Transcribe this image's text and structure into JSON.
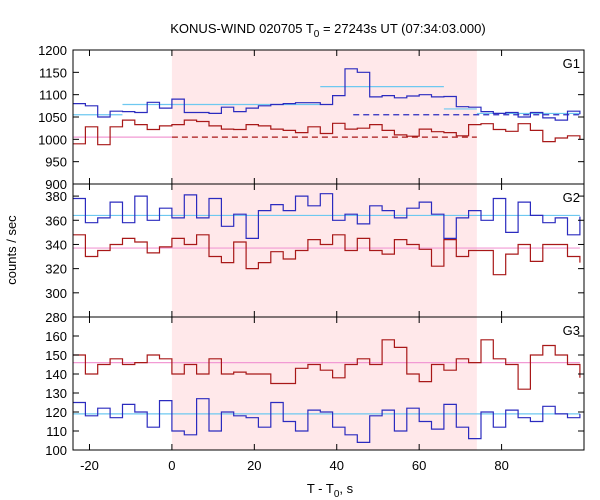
{
  "chart_data": {
    "type": "line",
    "title": "KONUS-WIND 020705 T",
    "title_sub": "0",
    "title_rest": " = 27243s UT (07:34:03.000)",
    "xlabel_main": "T - T",
    "xlabel_sub": "0",
    "xlabel_rest": ", s",
    "ylabel": "counts / sec",
    "xlim": [
      -24,
      100
    ],
    "xticks": [
      -20,
      0,
      20,
      40,
      60,
      80
    ],
    "highlight_interval": [
      0,
      74
    ],
    "colors": {
      "blue": "#2b2bbf",
      "red": "#a81818",
      "light_blue": "#6ec8f0",
      "pink": "#f29ad4",
      "shade": "#ffe8ea"
    },
    "panels": [
      {
        "name": "G1",
        "ylim": [
          900,
          1200
        ],
        "yticks": [
          900,
          950,
          1000,
          1050,
          1100,
          1150,
          1200
        ],
        "series": [
          {
            "color": "blue",
            "x_edges": [
              -24,
              -21,
              -18,
              -15,
              -12,
              -9,
              -6,
              -3,
              0,
              3,
              6,
              9,
              12,
              15,
              18,
              21,
              24,
              27,
              30,
              33,
              36,
              39,
              42,
              45,
              48,
              51,
              54,
              57,
              60,
              63,
              66,
              69,
              72,
              75,
              78,
              81,
              84,
              87,
              90,
              93,
              96,
              99
            ],
            "values": [
              1080,
              1075,
              1050,
              1063,
              1062,
              1060,
              1083,
              1070,
              1090,
              1060,
              1060,
              1058,
              1072,
              1062,
              1070,
              1075,
              1078,
              1080,
              1082,
              1082,
              1078,
              1098,
              1158,
              1150,
              1095,
              1098,
              1093,
              1097,
              1100,
              1095,
              1096,
              1073,
              1072,
              1062,
              1058,
              1060,
              1050,
              1060,
              1048,
              1043,
              1063,
              1056
            ]
          },
          {
            "color": "red",
            "x_edges": [
              -24,
              -21,
              -18,
              -15,
              -12,
              -9,
              -6,
              -3,
              0,
              3,
              6,
              9,
              12,
              15,
              18,
              21,
              24,
              27,
              30,
              33,
              36,
              39,
              42,
              45,
              48,
              51,
              54,
              57,
              60,
              63,
              66,
              69,
              72,
              75,
              78,
              81,
              84,
              87,
              90,
              93,
              96,
              99
            ],
            "values": [
              990,
              1028,
              988,
              1028,
              1043,
              1033,
              1022,
              1030,
              1033,
              1043,
              1040,
              1030,
              1023,
              1022,
              1033,
              1030,
              1023,
              1020,
              1015,
              1028,
              1013,
              1036,
              1023,
              1025,
              1033,
              1020,
              1010,
              1007,
              1023,
              1017,
              1015,
              1008,
              1033,
              1035,
              1022,
              1018,
              1035,
              1020,
              995,
              1003,
              1008,
              1000
            ]
          }
        ],
        "fits": [
          {
            "color": "light_blue",
            "style": "solid",
            "segments": [
              [
                -24,
                -12,
                1055
              ],
              [
                -12,
                36,
                1078
              ],
              [
                36,
                66,
                1118
              ],
              [
                66,
                74,
                1068
              ],
              [
                74,
                99,
                1058
              ]
            ]
          },
          {
            "color": "blue",
            "style": "dashed",
            "segments": [
              [
                44,
                99,
                1055
              ]
            ]
          },
          {
            "color": "red",
            "style": "dashed",
            "segments": [
              [
                0,
                74,
                1005
              ]
            ]
          },
          {
            "color": "pink",
            "style": "solid",
            "segments": [
              [
                -24,
                0,
                1005
              ]
            ]
          }
        ]
      },
      {
        "name": "G2",
        "ylim": [
          280,
          390
        ],
        "yticks": [
          280,
          300,
          320,
          340,
          360,
          380
        ],
        "series": [
          {
            "color": "blue",
            "x_edges": [
              -24,
              -21,
              -18,
              -15,
              -12,
              -9,
              -6,
              -3,
              0,
              3,
              6,
              9,
              12,
              15,
              18,
              21,
              24,
              27,
              30,
              33,
              36,
              39,
              42,
              45,
              48,
              51,
              54,
              57,
              60,
              63,
              66,
              69,
              72,
              75,
              78,
              81,
              84,
              87,
              90,
              93,
              96,
              99
            ],
            "values": [
              378,
              358,
              362,
              375,
              358,
              380,
              360,
              370,
              362,
              381,
              362,
              378,
              355,
              365,
              345,
              368,
              373,
              368,
              380,
              372,
              382,
              360,
              365,
              357,
              372,
              368,
              362,
              370,
              375,
              365,
              345,
              362,
              368,
              360,
              378,
              350,
              375,
              364,
              358,
              362,
              348,
              363
            ]
          },
          {
            "color": "red",
            "x_edges": [
              -24,
              -21,
              -18,
              -15,
              -12,
              -9,
              -6,
              -3,
              0,
              3,
              6,
              9,
              12,
              15,
              18,
              21,
              24,
              27,
              30,
              33,
              36,
              39,
              42,
              45,
              48,
              51,
              54,
              57,
              60,
              63,
              66,
              69,
              72,
              75,
              78,
              81,
              84,
              87,
              90,
              93,
              96,
              99
            ],
            "values": [
              348,
              330,
              335,
              340,
              345,
              342,
              333,
              338,
              345,
              340,
              348,
              330,
              325,
              342,
              320,
              325,
              334,
              328,
              335,
              344,
              340,
              348,
              335,
              345,
              335,
              332,
              344,
              340,
              336,
              322,
              344,
              330,
              335,
              335,
              315,
              332,
              340,
              326,
              340,
              340,
              330,
              325
            ]
          }
        ],
        "fits": [
          {
            "color": "light_blue",
            "style": "solid",
            "segments": [
              [
                -24,
                99,
                364
              ]
            ]
          },
          {
            "color": "pink",
            "style": "solid",
            "segments": [
              [
                -24,
                99,
                337
              ]
            ]
          }
        ]
      },
      {
        "name": "G3",
        "ylim": [
          100,
          170
        ],
        "yticks": [
          100,
          110,
          120,
          130,
          140,
          150,
          160
        ],
        "series": [
          {
            "color": "blue",
            "x_edges": [
              -24,
              -21,
              -18,
              -15,
              -12,
              -9,
              -6,
              -3,
              0,
              3,
              6,
              9,
              12,
              15,
              18,
              21,
              24,
              27,
              30,
              33,
              36,
              39,
              42,
              45,
              48,
              51,
              54,
              57,
              60,
              63,
              66,
              69,
              72,
              75,
              78,
              81,
              84,
              87,
              90,
              93,
              96,
              99
            ],
            "values": [
              125,
              118,
              122,
              117,
              124,
              120,
              112,
              126,
              110,
              108,
              127,
              110,
              120,
              118,
              117,
              112,
              125,
              115,
              110,
              121,
              120,
              112,
              108,
              104,
              118,
              121,
              110,
              122,
              115,
              111,
              124,
              112,
              106,
              120,
              112,
              121,
              117,
              115,
              123,
              119,
              117,
              119
            ]
          },
          {
            "color": "red",
            "x_edges": [
              -24,
              -21,
              -18,
              -15,
              -12,
              -9,
              -6,
              -3,
              0,
              3,
              6,
              9,
              12,
              15,
              18,
              21,
              24,
              27,
              30,
              33,
              36,
              39,
              42,
              45,
              48,
              51,
              54,
              57,
              60,
              63,
              66,
              69,
              72,
              75,
              78,
              81,
              84,
              87,
              90,
              93,
              96,
              99
            ],
            "values": [
              150,
              140,
              145,
              148,
              145,
              146,
              150,
              148,
              140,
              145,
              140,
              148,
              140,
              141,
              140,
              140,
              135,
              135,
              143,
              145,
              142,
              138,
              145,
              148,
              145,
              158,
              154,
              140,
              136,
              145,
              142,
              148,
              146,
              158,
              148,
              145,
              132,
              150,
              155,
              150,
              145,
              138
            ]
          }
        ],
        "fits": [
          {
            "color": "light_blue",
            "style": "solid",
            "segments": [
              [
                -24,
                99,
                119
              ]
            ]
          },
          {
            "color": "pink",
            "style": "solid",
            "segments": [
              [
                -24,
                99,
                146
              ]
            ]
          }
        ]
      }
    ]
  }
}
